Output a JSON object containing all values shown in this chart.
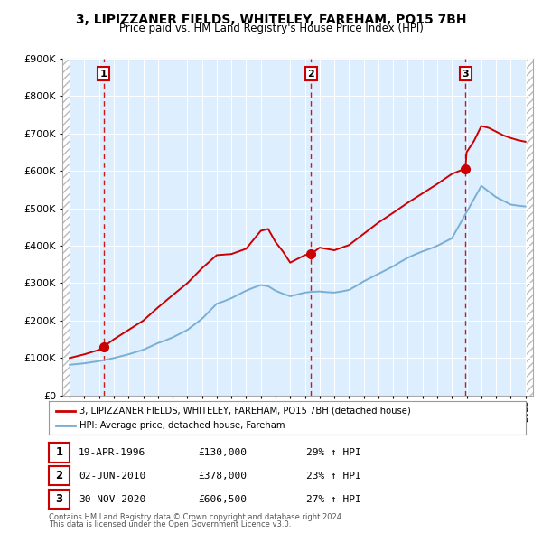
{
  "title": "3, LIPIZZANER FIELDS, WHITELEY, FAREHAM, PO15 7BH",
  "subtitle": "Price paid vs. HM Land Registry's House Price Index (HPI)",
  "legend_line1": "3, LIPIZZANER FIELDS, WHITELEY, FAREHAM, PO15 7BH (detached house)",
  "legend_line2": "HPI: Average price, detached house, Fareham",
  "footer1": "Contains HM Land Registry data © Crown copyright and database right 2024.",
  "footer2": "This data is licensed under the Open Government Licence v3.0.",
  "sale_labels": [
    "1",
    "2",
    "3"
  ],
  "sale_dates": [
    "19-APR-1996",
    "02-JUN-2010",
    "30-NOV-2020"
  ],
  "sale_prices": [
    "£130,000",
    "£378,000",
    "£606,500"
  ],
  "sale_hpi": [
    "29% ↑ HPI",
    "23% ↑ HPI",
    "27% ↑ HPI"
  ],
  "sale_years": [
    1996.3,
    2010.42,
    2020.92
  ],
  "sale_values": [
    130000,
    378000,
    606500
  ],
  "ylim": [
    0,
    900000
  ],
  "yticks": [
    0,
    100000,
    200000,
    300000,
    400000,
    500000,
    600000,
    700000,
    800000,
    900000
  ],
  "xlim_start": 1993.5,
  "xlim_end": 2025.5,
  "line_color_red": "#cc0000",
  "line_color_blue": "#7aafd4",
  "vline_color": "#cc0000",
  "plot_bg_color": "#ddeeff",
  "hpi_line_years": [
    1994,
    1994.5,
    1995,
    1995.5,
    1996,
    1996.5,
    1997,
    1997.5,
    1998,
    1998.5,
    1999,
    1999.5,
    2000,
    2000.5,
    2001,
    2001.5,
    2002,
    2002.5,
    2003,
    2003.5,
    2004,
    2004.5,
    2005,
    2005.5,
    2006,
    2006.5,
    2007,
    2007.5,
    2008,
    2008.5,
    2009,
    2009.5,
    2010,
    2010.5,
    2011,
    2011.5,
    2012,
    2012.5,
    2013,
    2013.5,
    2014,
    2014.5,
    2015,
    2015.5,
    2016,
    2016.5,
    2017,
    2017.5,
    2018,
    2018.5,
    2019,
    2019.5,
    2020,
    2020.5,
    2021,
    2021.5,
    2022,
    2022.5,
    2023,
    2023.5,
    2024,
    2024.5,
    2025
  ],
  "hpi_line_values": [
    82000,
    84000,
    86000,
    89000,
    92000,
    96000,
    100000,
    105000,
    110000,
    116000,
    122000,
    131000,
    140000,
    147000,
    155000,
    165000,
    175000,
    190000,
    205000,
    225000,
    245000,
    252000,
    260000,
    270000,
    280000,
    288000,
    295000,
    292000,
    280000,
    272000,
    265000,
    270000,
    275000,
    277000,
    278000,
    276000,
    275000,
    278000,
    282000,
    293000,
    305000,
    315000,
    325000,
    335000,
    345000,
    357000,
    368000,
    377000,
    385000,
    392000,
    400000,
    410000,
    420000,
    455000,
    490000,
    525000,
    560000,
    545000,
    530000,
    520000,
    510000,
    507000,
    505000
  ],
  "price_line_years": [
    1994,
    1995,
    1996,
    1996.3,
    1997,
    1998,
    1999,
    2000,
    2001,
    2002,
    2003,
    2004,
    2005,
    2006,
    2007,
    2007.5,
    2008,
    2008.5,
    2009,
    2009.5,
    2010,
    2010.42,
    2011,
    2012,
    2013,
    2014,
    2015,
    2016,
    2017,
    2018,
    2019,
    2020,
    2020.92,
    2021,
    2021.5,
    2022,
    2022.5,
    2023,
    2023.5,
    2024,
    2024.5,
    2025
  ],
  "price_line_values": [
    100000,
    110000,
    122000,
    130000,
    150000,
    175000,
    200000,
    235000,
    268000,
    300000,
    340000,
    375000,
    378000,
    392000,
    440000,
    445000,
    410000,
    385000,
    355000,
    365000,
    375000,
    378000,
    395000,
    388000,
    402000,
    432000,
    462000,
    488000,
    515000,
    540000,
    565000,
    592000,
    606500,
    650000,
    680000,
    720000,
    715000,
    705000,
    695000,
    688000,
    682000,
    678000
  ]
}
